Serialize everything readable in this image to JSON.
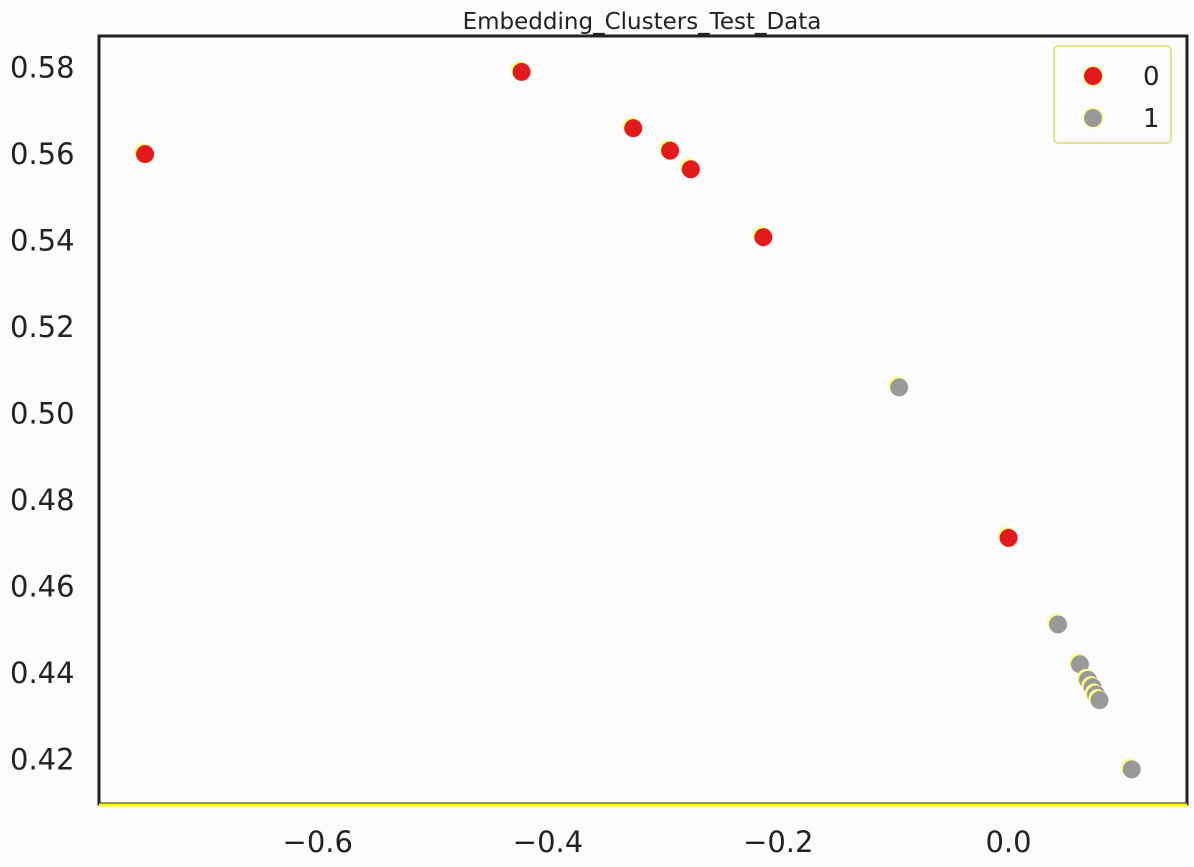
{
  "chart_data": {
    "type": "scatter",
    "title": "Embedding_Clusters_Test_Data",
    "xlabel": "",
    "ylabel": "",
    "xlim": [
      -0.79,
      0.155
    ],
    "ylim": [
      0.4095,
      0.587
    ],
    "x_ticks": [
      -0.6,
      -0.4,
      -0.2,
      0.0
    ],
    "x_tick_labels": [
      "−0.6",
      "−0.4",
      "−0.2",
      "0.0"
    ],
    "y_ticks": [
      0.42,
      0.44,
      0.46,
      0.48,
      0.5,
      0.52,
      0.54,
      0.56,
      0.58
    ],
    "y_tick_labels": [
      "0.42",
      "0.44",
      "0.46",
      "0.48",
      "0.50",
      "0.52",
      "0.54",
      "0.56",
      "0.58"
    ],
    "grid": false,
    "legend_position": "top-right",
    "series": [
      {
        "name": "0",
        "color": "#e31a1c",
        "points": [
          {
            "x": -0.75,
            "y": 0.5597
          },
          {
            "x": -0.423,
            "y": 0.5787
          },
          {
            "x": -0.326,
            "y": 0.5657
          },
          {
            "x": -0.294,
            "y": 0.5605
          },
          {
            "x": -0.276,
            "y": 0.5562
          },
          {
            "x": -0.213,
            "y": 0.5405
          },
          {
            "x": 0.0,
            "y": 0.471
          }
        ]
      },
      {
        "name": "1",
        "color": "#999999",
        "points": [
          {
            "x": -0.095,
            "y": 0.5058
          },
          {
            "x": 0.043,
            "y": 0.451
          },
          {
            "x": 0.062,
            "y": 0.4418
          },
          {
            "x": 0.069,
            "y": 0.4382
          },
          {
            "x": 0.073,
            "y": 0.4365
          },
          {
            "x": 0.076,
            "y": 0.4348
          },
          {
            "x": 0.079,
            "y": 0.4335
          },
          {
            "x": 0.107,
            "y": 0.4175
          }
        ]
      }
    ]
  }
}
